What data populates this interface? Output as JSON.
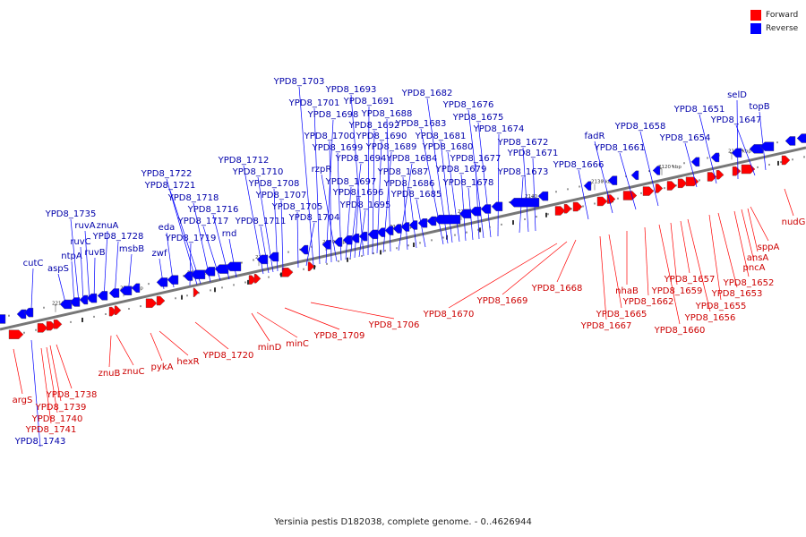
{
  "legend": {
    "forward_label": "Forward",
    "reverse_label": "Reverse",
    "forward_color": "#ff0000",
    "reverse_color": "#0000ff"
  },
  "caption": "Yersinia pestis D182038, complete genome. - 0..4626944",
  "colors": {
    "backbone": "#777777",
    "forward_label": "#cc0000",
    "reverse_label": "#0000aa",
    "ticks": "#333333"
  },
  "axis_ticks": [
    "2110 kbp",
    "2120 kbp",
    "2130 kbp",
    "2140 kbp",
    "2150 kbp",
    "2160 kbp",
    "2170 kbp",
    "2180 kbp",
    "2190 kbp",
    "2200 kbp",
    "2210 kbp"
  ],
  "reverse_genes": [
    "cutC",
    "aspS",
    "ntpA",
    "ruvC",
    "ruvA",
    "ruvB",
    "YPD8_1735",
    "znuA",
    "YPD8_1728",
    "msbB",
    "zwf",
    "eda",
    "YPD8_1719",
    "YPD8_1722",
    "YPD8_1721",
    "YPD8_1718",
    "YPD8_1717",
    "YPD8_1716",
    "rnd",
    "YPD8_1712",
    "YPD8_1711",
    "YPD8_1710",
    "YPD8_1708",
    "YPD8_1707",
    "YPD8_1705",
    "YPD8_1704",
    "YPD8_1703",
    "YPD8_1701",
    "YPD8_1698",
    "YPD8_1700",
    "rzpR",
    "YPD8_1699",
    "YPD8_1697",
    "YPD8_1694",
    "YPD8_1696",
    "YPD8_1695",
    "YPD8_1693",
    "YPD8_1691",
    "YPD8_1692",
    "YPD8_1690",
    "YPD8_1689",
    "YPD8_1688",
    "YPD8_1684",
    "YPD8_1687",
    "YPD8_1686",
    "YPD8_1685",
    "YPD8_1683",
    "YPD8_1682",
    "YPD8_1681",
    "YPD8_1680",
    "YPD8_1679",
    "YPD8_1678",
    "YPD8_1677",
    "YPD8_1676",
    "YPD8_1675",
    "YPD8_1674",
    "YPD8_1672",
    "YPD8_1671",
    "YPD8_1673",
    "YPD8_1666",
    "fadR",
    "YPD8_1661",
    "YPD8_1658",
    "YPD8_1654",
    "YPD8_1651",
    "selD",
    "YPD8_1647",
    "topB",
    "YPD8_1743"
  ],
  "forward_genes": [
    "argS",
    "YPD8_1738",
    "YPD8_1739",
    "YPD8_1740",
    "YPD8_1741",
    "znuB",
    "znuC",
    "pykA",
    "hexR",
    "YPD8_1720",
    "minD",
    "minC",
    "YPD8_1709",
    "YPD8_1706",
    "YPD8_1670",
    "YPD8_1669",
    "YPD8_1668",
    "YPD8_1667",
    "YPD8_1665",
    "nhaB",
    "YPD8_1662",
    "YPD8_1660",
    "YPD8_1659",
    "YPD8_1657",
    "YPD8_1656",
    "YPD8_1655",
    "YPD8_1653",
    "YPD8_1652",
    "pncA",
    "ansA",
    "sppA",
    "nudG"
  ]
}
